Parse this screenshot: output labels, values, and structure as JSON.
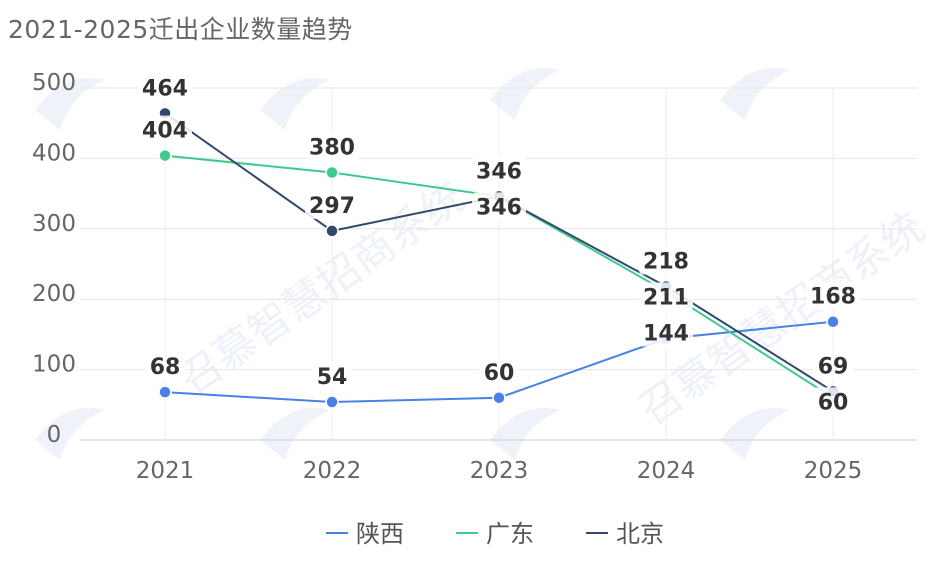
{
  "chart_data": {
    "type": "line",
    "title": "2021-2025迁出企业数量趋势",
    "xlabel": "",
    "ylabel": "",
    "x": [
      "2021",
      "2022",
      "2023",
      "2024",
      "2025"
    ],
    "y_ticks": [
      "0",
      "100",
      "200",
      "300",
      "400",
      "500"
    ],
    "ylim": [
      0,
      500
    ],
    "grid": true,
    "legend_position": "bottom-center",
    "series": [
      {
        "name": "陕西",
        "color": "#4a80e8",
        "values": [
          68,
          54,
          60,
          144,
          168
        ]
      },
      {
        "name": "广东",
        "color": "#3ec98f",
        "values": [
          404,
          380,
          346,
          211,
          60
        ]
      },
      {
        "name": "北京",
        "color": "#34486b",
        "values": [
          464,
          297,
          346,
          218,
          69
        ]
      }
    ],
    "watermark": "召慕智慧招商系统"
  }
}
